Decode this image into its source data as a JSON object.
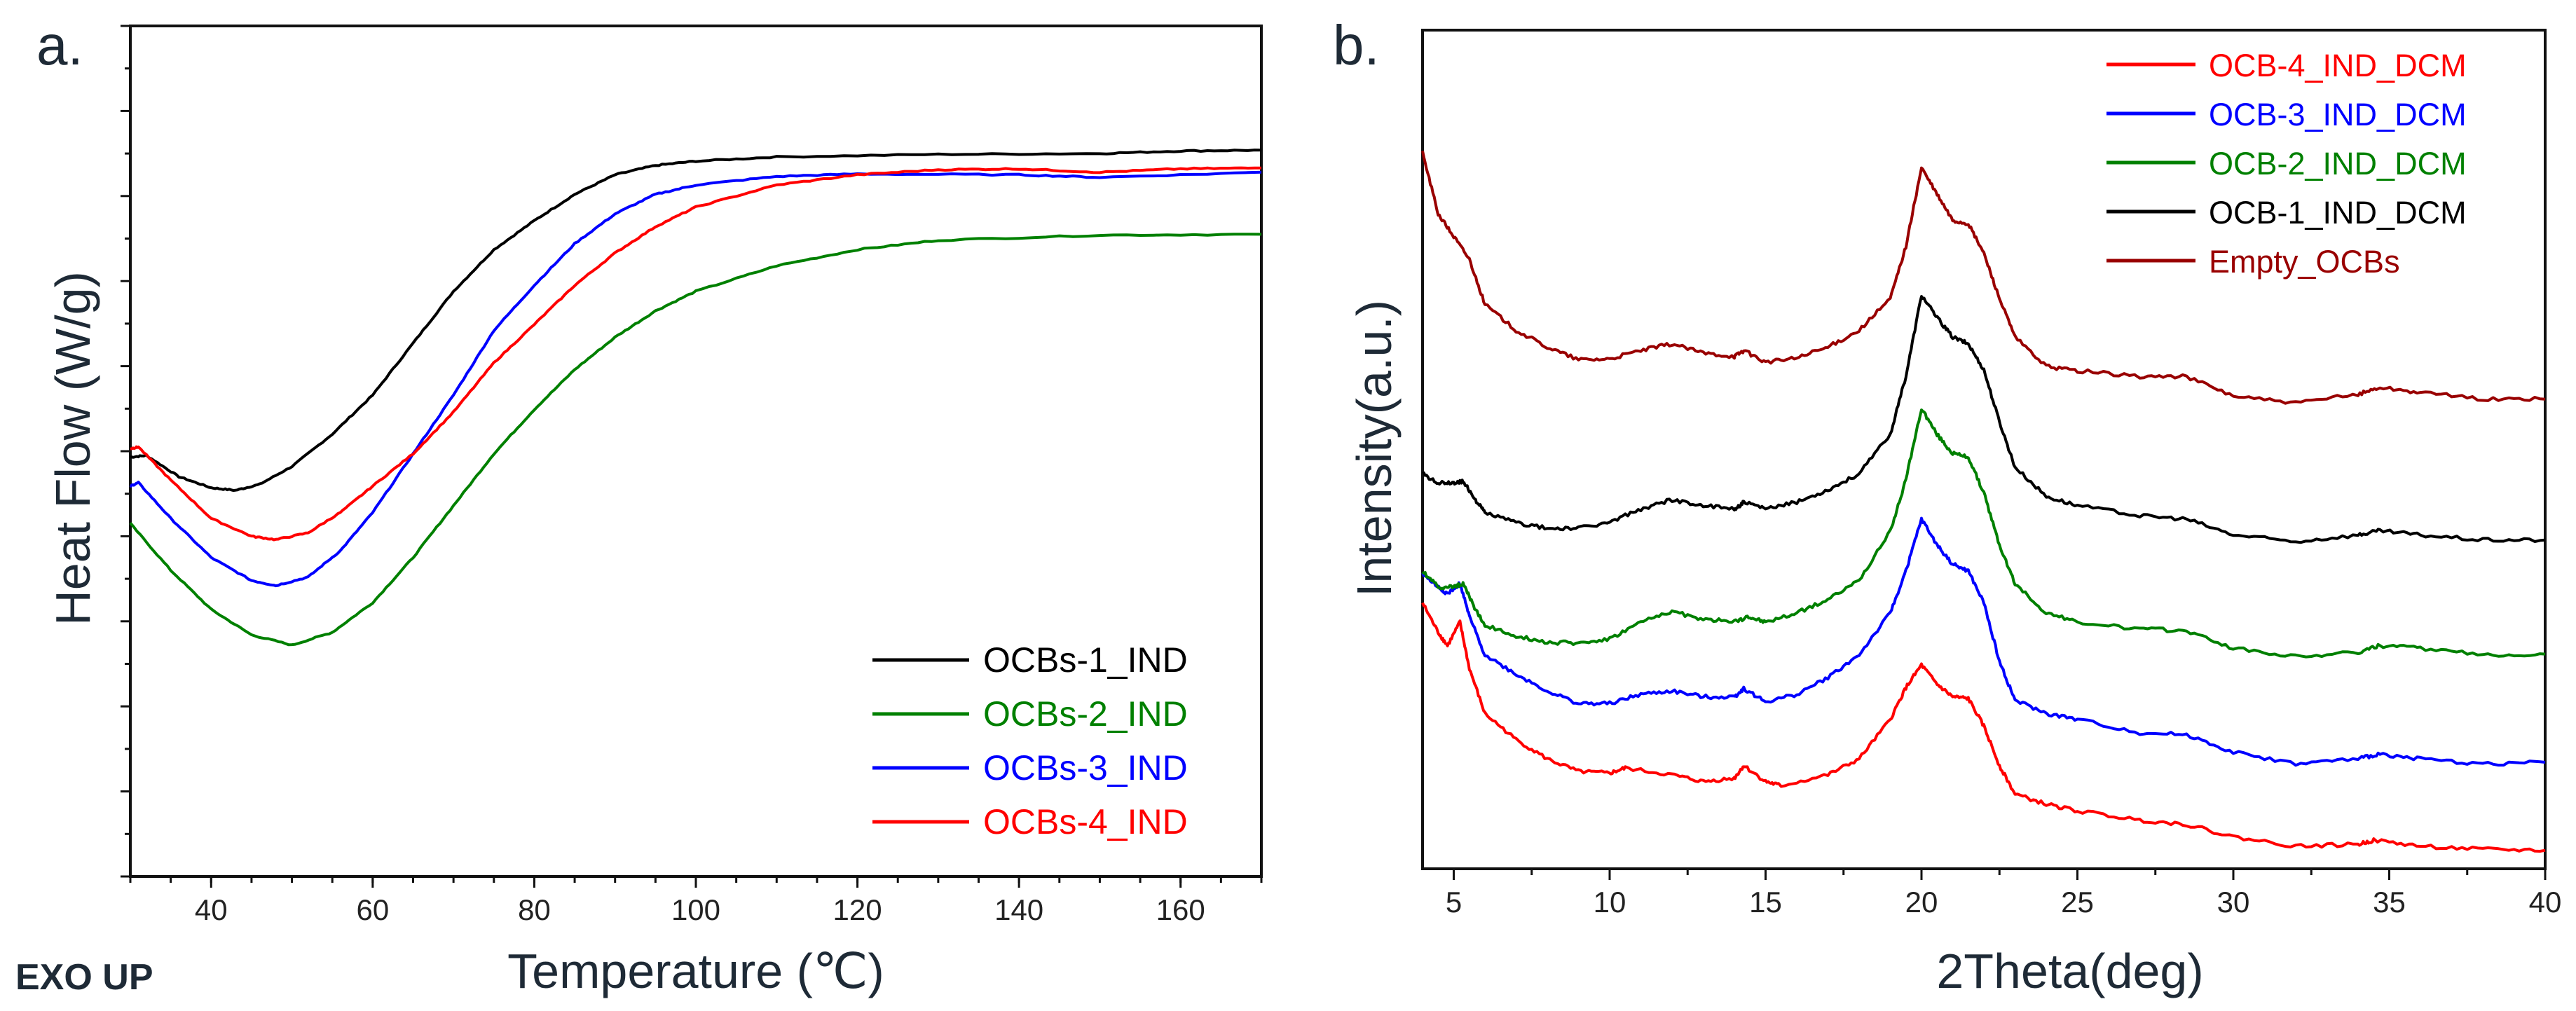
{
  "chart_data": [
    {
      "type": "line",
      "panel_label": "a.",
      "xlabel": "Temperature (℃)",
      "ylabel": "Heat Flow (W/g)",
      "corner_note": "EXO UP",
      "xlim": [
        30,
        170
      ],
      "ylim": [
        0,
        100
      ],
      "xticks": [
        "40",
        "60",
        "80",
        "100",
        "120",
        "140",
        "160"
      ],
      "y_units": "arbitrary (no tick labels)",
      "legend_position": "bottom-right",
      "series": [
        {
          "name": "OCBs-1_IND",
          "color": "#000000",
          "x": [
            30,
            32,
            36,
            40,
            43,
            46,
            50,
            55,
            60,
            65,
            70,
            75,
            80,
            85,
            90,
            95,
            100,
            110,
            130,
            150,
            160,
            170
          ],
          "y": [
            49.3,
            49.5,
            47.0,
            45.7,
            45.4,
            46.1,
            48.2,
            52.0,
            56.6,
            62.7,
            68.8,
            73.7,
            77.1,
            80.2,
            82.5,
            83.6,
            84.1,
            84.6,
            84.9,
            85.0,
            85.3,
            85.4
          ]
        },
        {
          "name": "OCBs-2_IND",
          "color": "#008000",
          "x": [
            30,
            35,
            40,
            45,
            50,
            55,
            60,
            65,
            70,
            75,
            80,
            85,
            90,
            95,
            100,
            110,
            120,
            130,
            150,
            170
          ],
          "y": [
            41.5,
            36.0,
            31.4,
            28.4,
            27.2,
            28.7,
            32.2,
            37.5,
            43.6,
            49.7,
            54.9,
            59.6,
            63.4,
            66.5,
            68.8,
            71.8,
            73.7,
            74.8,
            75.4,
            75.5
          ]
        },
        {
          "name": "OCBs-3_IND",
          "color": "#0000ff",
          "x": [
            30,
            31,
            35,
            40,
            45,
            48,
            52,
            56,
            60,
            65,
            70,
            75,
            80,
            85,
            90,
            95,
            100,
            110,
            120,
            140,
            150,
            170
          ],
          "y": [
            45.9,
            46.3,
            42.1,
            37.5,
            34.8,
            34.2,
            35.2,
            38.3,
            42.8,
            49.7,
            56.6,
            64.2,
            69.5,
            74.4,
            77.9,
            80.2,
            81.3,
            82.3,
            82.6,
            82.5,
            82.2,
            82.8
          ]
        },
        {
          "name": "OCBs-4_IND",
          "color": "#ff0000",
          "x": [
            30,
            31,
            35,
            40,
            45,
            48,
            52,
            56,
            60,
            65,
            70,
            75,
            80,
            85,
            90,
            95,
            100,
            110,
            120,
            130,
            140,
            150,
            160,
            170
          ],
          "y": [
            50.3,
            50.5,
            46.6,
            42.1,
            40.0,
            39.6,
            40.4,
            42.8,
            45.9,
            49.7,
            54.6,
            60.4,
            64.9,
            69.5,
            73.3,
            76.4,
            78.7,
            81.3,
            82.5,
            83.1,
            83.2,
            82.8,
            83.2,
            83.3
          ]
        }
      ]
    },
    {
      "type": "line",
      "panel_label": "b.",
      "xlabel": "2Theta(deg)",
      "ylabel": "Intensity(a.u.)",
      "xlim": [
        4,
        40
      ],
      "ylim": [
        0,
        100
      ],
      "xticks": [
        "5",
        "10",
        "15",
        "20",
        "25",
        "30",
        "35",
        "40"
      ],
      "y_units": "arbitrary (no tick labels)",
      "legend_position": "top-right",
      "series": [
        {
          "name": "OCB-4_IND_DCM",
          "color": "#ff0000",
          "x": [
            4,
            4.5,
            4.8,
            5.2,
            5.5,
            6,
            7,
            8,
            9,
            10,
            10.5,
            12,
            13,
            14,
            14.3,
            15,
            15.5,
            17,
            18,
            19,
            19.5,
            20,
            20.5,
            21,
            21.5,
            22,
            22.5,
            23,
            24,
            25,
            27,
            28.5,
            30,
            32,
            34,
            34.5,
            36,
            38,
            40
          ],
          "y": [
            31.7,
            28.2,
            26.6,
            29.4,
            23.9,
            18.5,
            15.4,
            13.1,
            11.6,
            11.4,
            12.0,
            11.2,
            10.4,
            10.8,
            12.3,
            10.4,
            9.9,
            11.2,
            13.1,
            17.8,
            21.6,
            24.3,
            22.0,
            20.5,
            20.3,
            17.0,
            12.3,
            8.9,
            7.7,
            6.9,
            5.8,
            5.3,
            3.8,
            2.7,
            2.9,
            3.4,
            2.7,
            2.3,
            2.2
          ]
        },
        {
          "name": "OCB-3_IND_DCM",
          "color": "#0000ff",
          "x": [
            4,
            4.5,
            4.8,
            5.2,
            5.5,
            6,
            7,
            8,
            9,
            10,
            11,
            12,
            13,
            14,
            14.3,
            15,
            16,
            17,
            18,
            19,
            19.5,
            20,
            20.5,
            21,
            21.5,
            22,
            22.5,
            23,
            24,
            25,
            27,
            28.5,
            30,
            32,
            34,
            34.7,
            36,
            38,
            40
          ],
          "y": [
            35.2,
            33.6,
            32.8,
            34.0,
            30.1,
            25.5,
            23.2,
            21.2,
            19.7,
            19.7,
            20.8,
            21.2,
            20.5,
            20.5,
            21.5,
            19.9,
            20.8,
            22.8,
            25.5,
            30.5,
            35.5,
            41.7,
            38.6,
            36.3,
            35.5,
            31.7,
            24.7,
            20.1,
            18.5,
            17.8,
            16.2,
            16.0,
            13.9,
            12.5,
            13.1,
            13.7,
            13.1,
            12.5,
            12.7
          ]
        },
        {
          "name": "OCB-2_IND_DCM",
          "color": "#008000",
          "x": [
            4,
            4.5,
            5,
            5.3,
            5.7,
            6,
            7,
            8,
            9,
            10,
            11,
            12,
            13,
            14,
            14.5,
            15,
            16,
            17,
            18,
            19,
            19.5,
            20,
            20.5,
            21,
            21.5,
            22,
            22.5,
            23,
            24,
            25,
            27,
            28.5,
            30,
            32,
            34,
            34.7,
            36,
            38,
            40
          ],
          "y": [
            35.5,
            33.6,
            33.6,
            34.0,
            30.9,
            29.0,
            27.8,
            27.0,
            26.9,
            27.4,
            29.4,
            30.7,
            29.7,
            29.5,
            30.0,
            29.4,
            30.5,
            32.1,
            34.4,
            40.2,
            46.4,
            54.9,
            51.8,
            49.5,
            49.1,
            44.8,
            38.6,
            34.0,
            30.5,
            29.4,
            28.6,
            28.4,
            26.3,
            25.3,
            25.8,
            26.6,
            26.3,
            25.5,
            25.6
          ]
        },
        {
          "name": "OCB-1_IND_DCM",
          "color": "#000000",
          "x": [
            4,
            4.5,
            5,
            5.3,
            5.7,
            6,
            7,
            8,
            9,
            10,
            11,
            12,
            13,
            14,
            14.3,
            15,
            16,
            17,
            18,
            19,
            19.5,
            20,
            20.5,
            21,
            21.5,
            22,
            22.5,
            23,
            24,
            25,
            27,
            28.5,
            30,
            32,
            34,
            34.7,
            36,
            38,
            40
          ],
          "y": [
            47.1,
            46.0,
            46.0,
            46.2,
            44.0,
            42.5,
            41.3,
            40.6,
            40.6,
            41.3,
            42.9,
            44.0,
            43.3,
            42.9,
            43.7,
            42.9,
            43.7,
            45.2,
            47.1,
            51.8,
            58.7,
            68.4,
            65.7,
            63.4,
            62.6,
            59.5,
            53.3,
            47.9,
            44.4,
            43.3,
            42.1,
            41.7,
            39.8,
            39.0,
            39.8,
            40.3,
            39.8,
            39.2,
            39.2
          ]
        },
        {
          "name": "Empty_OCBs",
          "color": "#990000",
          "x": [
            4,
            4.5,
            5,
            5.5,
            6,
            7,
            8,
            9,
            10,
            11,
            12,
            13,
            14,
            14.3,
            15,
            16,
            17,
            18,
            19,
            19.5,
            20,
            20.5,
            21,
            21.5,
            22,
            22.5,
            23,
            24,
            25,
            27,
            28.5,
            30,
            32,
            34,
            34.7,
            36,
            38,
            40
          ],
          "y": [
            85.4,
            78.1,
            75.4,
            72.7,
            67.3,
            64.2,
            62.2,
            60.7,
            60.8,
            61.8,
            62.6,
            61.5,
            61.1,
            61.8,
            60.4,
            60.9,
            62.2,
            64.2,
            68.0,
            74.2,
            83.6,
            80.4,
            77.3,
            76.9,
            73.4,
            68.0,
            63.4,
            59.9,
            59.4,
            58.7,
            58.7,
            56.4,
            55.5,
            56.6,
            57.4,
            56.8,
            56.0,
            56.0
          ]
        }
      ]
    }
  ]
}
